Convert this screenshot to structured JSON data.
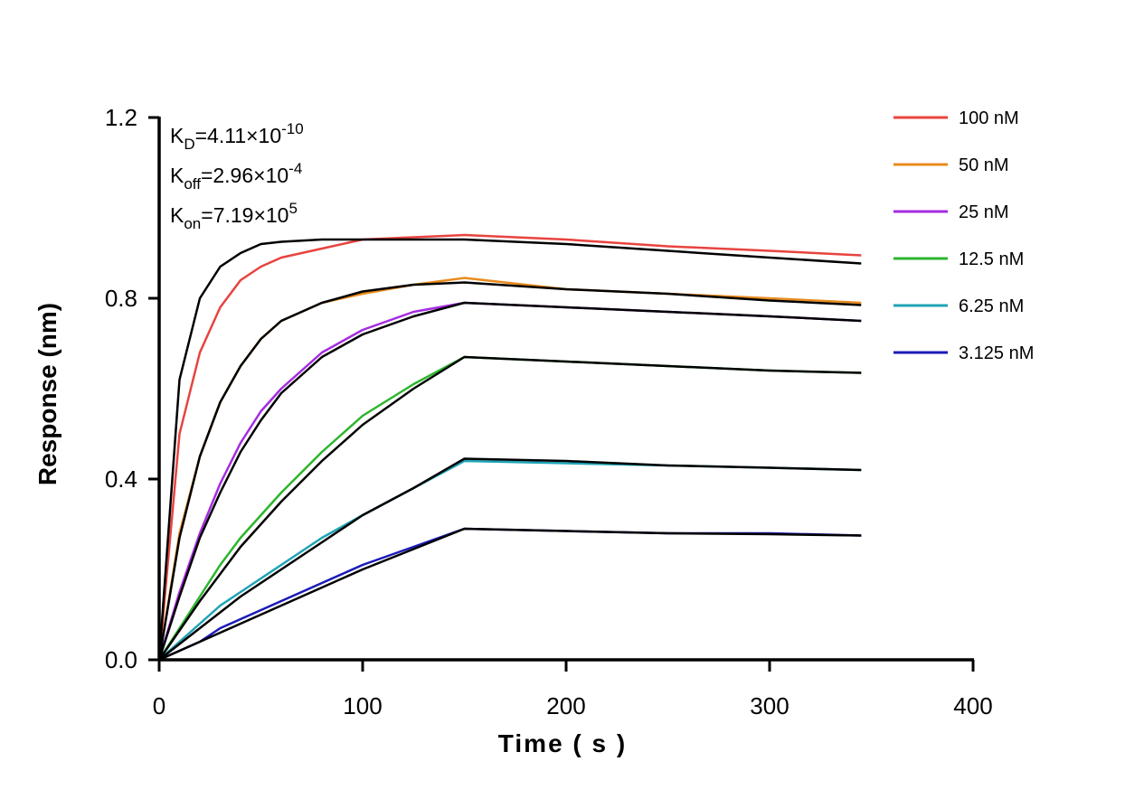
{
  "chart_data": {
    "type": "line",
    "xlabel": "Time ( s )",
    "ylabel": "Response (nm)",
    "annotations": [
      {
        "symbol": "K",
        "subscript": "D",
        "text": "=4.11×10",
        "exponent": "-10"
      },
      {
        "symbol": "K",
        "subscript": "off",
        "text": "=2.96×10",
        "exponent": "-4"
      },
      {
        "symbol": "K",
        "subscript": "on",
        "text": "=7.19×10",
        "exponent": "5"
      }
    ],
    "x": [
      0,
      10,
      20,
      30,
      40,
      50,
      60,
      80,
      100,
      125,
      150,
      200,
      250,
      300,
      345
    ],
    "fit_color": "#000000",
    "series": [
      {
        "name": "100 nM",
        "color": "#e8433f",
        "values": [
          0,
          0.5,
          0.68,
          0.78,
          0.84,
          0.87,
          0.89,
          0.91,
          0.93,
          0.935,
          0.94,
          0.93,
          0.915,
          0.905,
          0.895
        ],
        "fit_values": [
          0,
          0.62,
          0.8,
          0.87,
          0.9,
          0.92,
          0.925,
          0.93,
          0.93,
          0.93,
          0.93,
          0.92,
          0.905,
          0.89,
          0.877
        ]
      },
      {
        "name": "50 nM",
        "color": "#e88b1e",
        "values": [
          0,
          0.28,
          0.45,
          0.57,
          0.65,
          0.71,
          0.75,
          0.79,
          0.81,
          0.83,
          0.845,
          0.82,
          0.81,
          0.8,
          0.79
        ],
        "fit_values": [
          0,
          0.27,
          0.45,
          0.57,
          0.65,
          0.71,
          0.75,
          0.79,
          0.815,
          0.83,
          0.835,
          0.82,
          0.81,
          0.795,
          0.785
        ]
      },
      {
        "name": "25 nM",
        "color": "#a52ce0",
        "values": [
          0,
          0.15,
          0.28,
          0.39,
          0.48,
          0.55,
          0.6,
          0.68,
          0.73,
          0.77,
          0.79,
          0.78,
          0.77,
          0.76,
          0.75
        ],
        "fit_values": [
          0,
          0.14,
          0.27,
          0.37,
          0.46,
          0.53,
          0.59,
          0.67,
          0.72,
          0.76,
          0.79,
          0.78,
          0.77,
          0.76,
          0.75
        ]
      },
      {
        "name": "12.5 nM",
        "color": "#2db52d",
        "values": [
          0,
          0.07,
          0.14,
          0.21,
          0.27,
          0.32,
          0.37,
          0.46,
          0.54,
          0.61,
          0.67,
          0.66,
          0.65,
          0.64,
          0.635
        ],
        "fit_values": [
          0,
          0.065,
          0.13,
          0.19,
          0.25,
          0.3,
          0.35,
          0.44,
          0.52,
          0.6,
          0.67,
          0.66,
          0.65,
          0.64,
          0.635
        ]
      },
      {
        "name": "6.25 nM",
        "color": "#1fa3b5",
        "values": [
          0,
          0.04,
          0.08,
          0.12,
          0.15,
          0.18,
          0.21,
          0.27,
          0.32,
          0.38,
          0.44,
          0.435,
          0.43,
          0.425,
          0.42
        ],
        "fit_values": [
          0,
          0.035,
          0.07,
          0.105,
          0.14,
          0.17,
          0.2,
          0.26,
          0.32,
          0.38,
          0.445,
          0.44,
          0.43,
          0.425,
          0.42
        ]
      },
      {
        "name": "3.125 nM",
        "color": "#1a1ab8",
        "values": [
          0,
          0.02,
          0.04,
          0.07,
          0.09,
          0.11,
          0.13,
          0.17,
          0.21,
          0.25,
          0.29,
          0.285,
          0.28,
          0.28,
          0.275
        ],
        "fit_values": [
          0,
          0.02,
          0.04,
          0.06,
          0.08,
          0.1,
          0.12,
          0.16,
          0.2,
          0.245,
          0.29,
          0.285,
          0.28,
          0.278,
          0.275
        ]
      }
    ],
    "xlim": [
      0,
      400
    ],
    "xticks": [
      0,
      100,
      200,
      300,
      400
    ],
    "ylim": [
      0,
      1.2
    ],
    "yticks": [
      {
        "value": 0,
        "label": "0.0"
      },
      {
        "value": 0.4,
        "label": "0.4"
      },
      {
        "value": 0.8,
        "label": "0.8"
      },
      {
        "value": 1.2,
        "label": "1.2"
      }
    ],
    "legend": "top-right",
    "grid": false
  }
}
